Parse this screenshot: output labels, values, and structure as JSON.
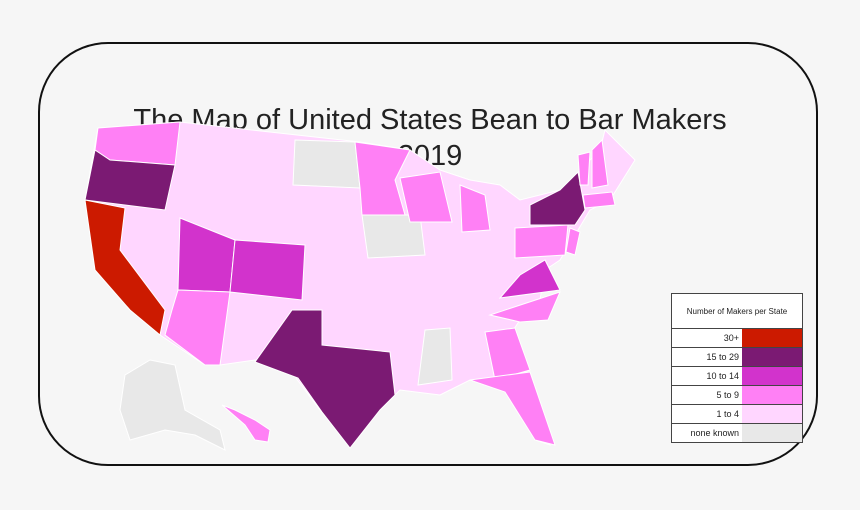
{
  "title_line1": "The Map of United States Bean to Bar Makers",
  "title_line2": "2019",
  "legend": {
    "title": "Number of Makers per State",
    "items": [
      {
        "label": "30+",
        "color": "#cc1a00",
        "key": "c30"
      },
      {
        "label": "15 to 29",
        "color": "#7b1a73",
        "key": "c15"
      },
      {
        "label": "10 to 14",
        "color": "#d233cc",
        "key": "c10"
      },
      {
        "label": "5 to 9",
        "color": "#ff80f5",
        "key": "c5"
      },
      {
        "label": "1 to 4",
        "color": "#ffd6ff",
        "key": "c1"
      },
      {
        "label": "none known",
        "color": "#e8e8e8",
        "key": "c0"
      }
    ]
  },
  "states": {
    "CA": "c30",
    "OR": "c15",
    "NY": "c15",
    "TX": "c15",
    "UT": "c10",
    "CO": "c10",
    "VA": "c10",
    "WA": "c5",
    "AZ": "c5",
    "MN": "c5",
    "WI": "c5",
    "MI": "c5",
    "PA": "c5",
    "NC": "c5",
    "GA": "c5",
    "FL": "c5",
    "NH": "c5",
    "VT": "c5",
    "MA": "c5",
    "NJ": "c5",
    "HI": "c5",
    "ND": "c0",
    "IA": "c0",
    "MS": "c0",
    "AK": "c0",
    "other": "c1"
  }
}
